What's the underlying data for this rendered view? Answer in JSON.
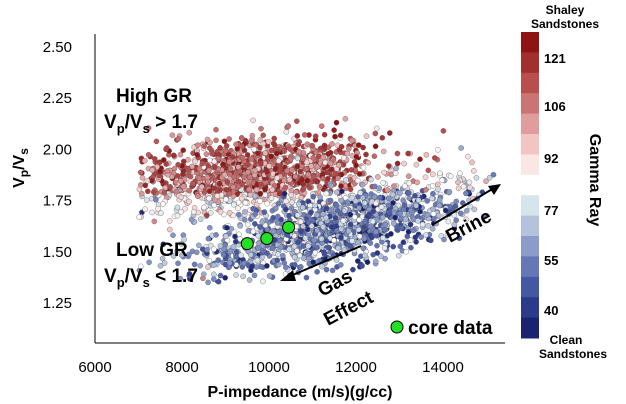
{
  "chart_data": {
    "type": "scatter",
    "xlabel": "P-impedance (m/s)(g/cc)",
    "ylabel": {
      "v1": "V",
      "s1": "p",
      "mid": "/V",
      "s2": "s"
    },
    "xlim": [
      6000,
      15500
    ],
    "ylim": [
      1.1,
      2.55
    ],
    "x_ticks": [
      "6000",
      "8000",
      "10000",
      "12000",
      "14000"
    ],
    "y_ticks": [
      "2.50",
      "2.25",
      "2.00",
      "1.75",
      "1.50",
      "1.25"
    ],
    "colorbar": {
      "title": "Gamma Ray",
      "top_label": [
        "Shaley",
        "Sandstones"
      ],
      "bottom_label": [
        "Clean",
        "Sandstones"
      ],
      "ticks": [
        "121",
        "106",
        "92",
        "77",
        "55",
        "40"
      ],
      "range": [
        25,
        140
      ],
      "colors": [
        "#1a2370",
        "#2c3a8c",
        "#4457a3",
        "#6677b8",
        "#8c9cca",
        "#b4c2dc",
        "#d6e4ec",
        "#ffffff",
        "#fbe6e6",
        "#f2c4c4",
        "#e09d9d",
        "#cc7474",
        "#b84e4e",
        "#a32e2e",
        "#8e1414"
      ]
    },
    "core_data": {
      "label": "core data",
      "points": [
        {
          "x": 9500,
          "y": 1.54
        },
        {
          "x": 9950,
          "y": 1.565
        },
        {
          "x": 10450,
          "y": 1.62
        }
      ]
    },
    "cloud": {
      "high_gr_mean": [
        9500,
        1.88
      ],
      "high_gr_gr": 118,
      "low_gr_mean": [
        11500,
        1.62
      ],
      "low_gr_gr": 55,
      "x_range": [
        7000,
        15200
      ]
    },
    "annotations": {
      "high_gr": "High GR",
      "high_gr_rule": {
        "v1": "V",
        "s1": "p",
        "mid": "/V",
        "s2": "s",
        "rest": " > 1.7"
      },
      "low_gr": "Low GR",
      "low_gr_rule": {
        "v1": "V",
        "s1": "p",
        "mid": "/V",
        "s2": "s",
        "rest": " < 1.7"
      },
      "brine": "Brine",
      "gas_effect": [
        "Gas",
        "Effect"
      ]
    }
  }
}
